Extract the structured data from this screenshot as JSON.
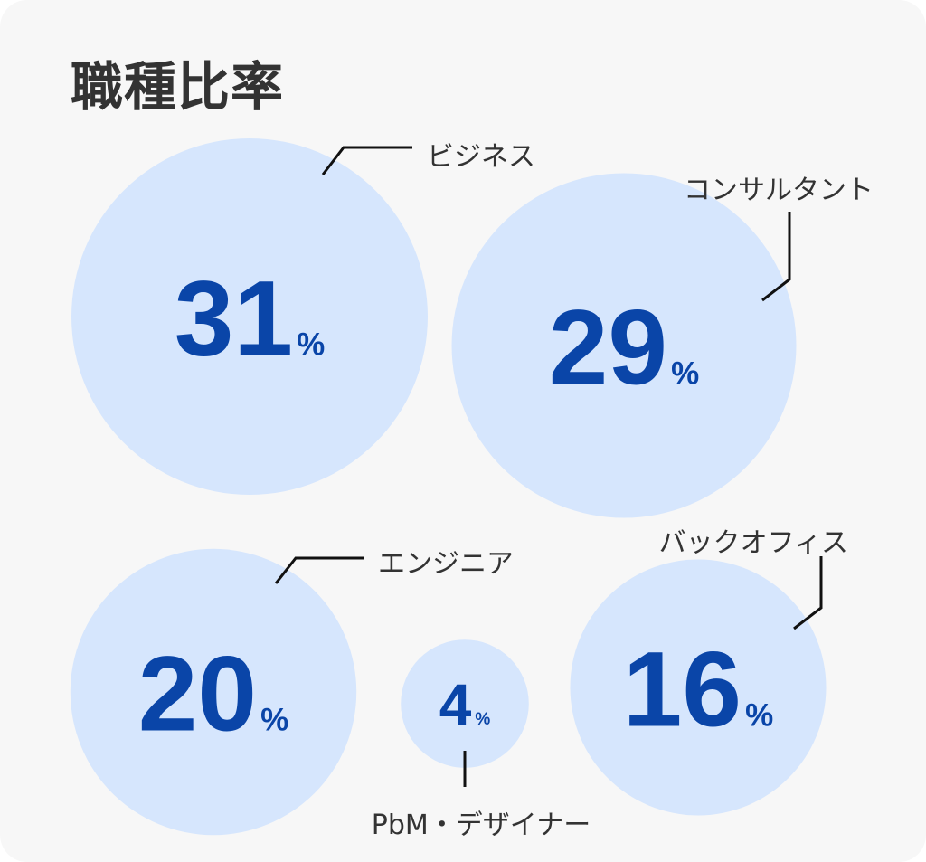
{
  "title": "職種比率",
  "colors": {
    "bubble_fill": "#d6e6fd",
    "value_text": "#0a45a8",
    "label_text": "#333333",
    "leader_line": "#111111",
    "background": "#f7f7f7"
  },
  "chart_data": {
    "type": "bubble",
    "unit": "%",
    "categories": [
      "ビジネス",
      "コンサルタント",
      "エンジニア",
      "バックオフィス",
      "PbM・デザイナー"
    ],
    "values": [
      31,
      29,
      20,
      16,
      4
    ]
  }
}
